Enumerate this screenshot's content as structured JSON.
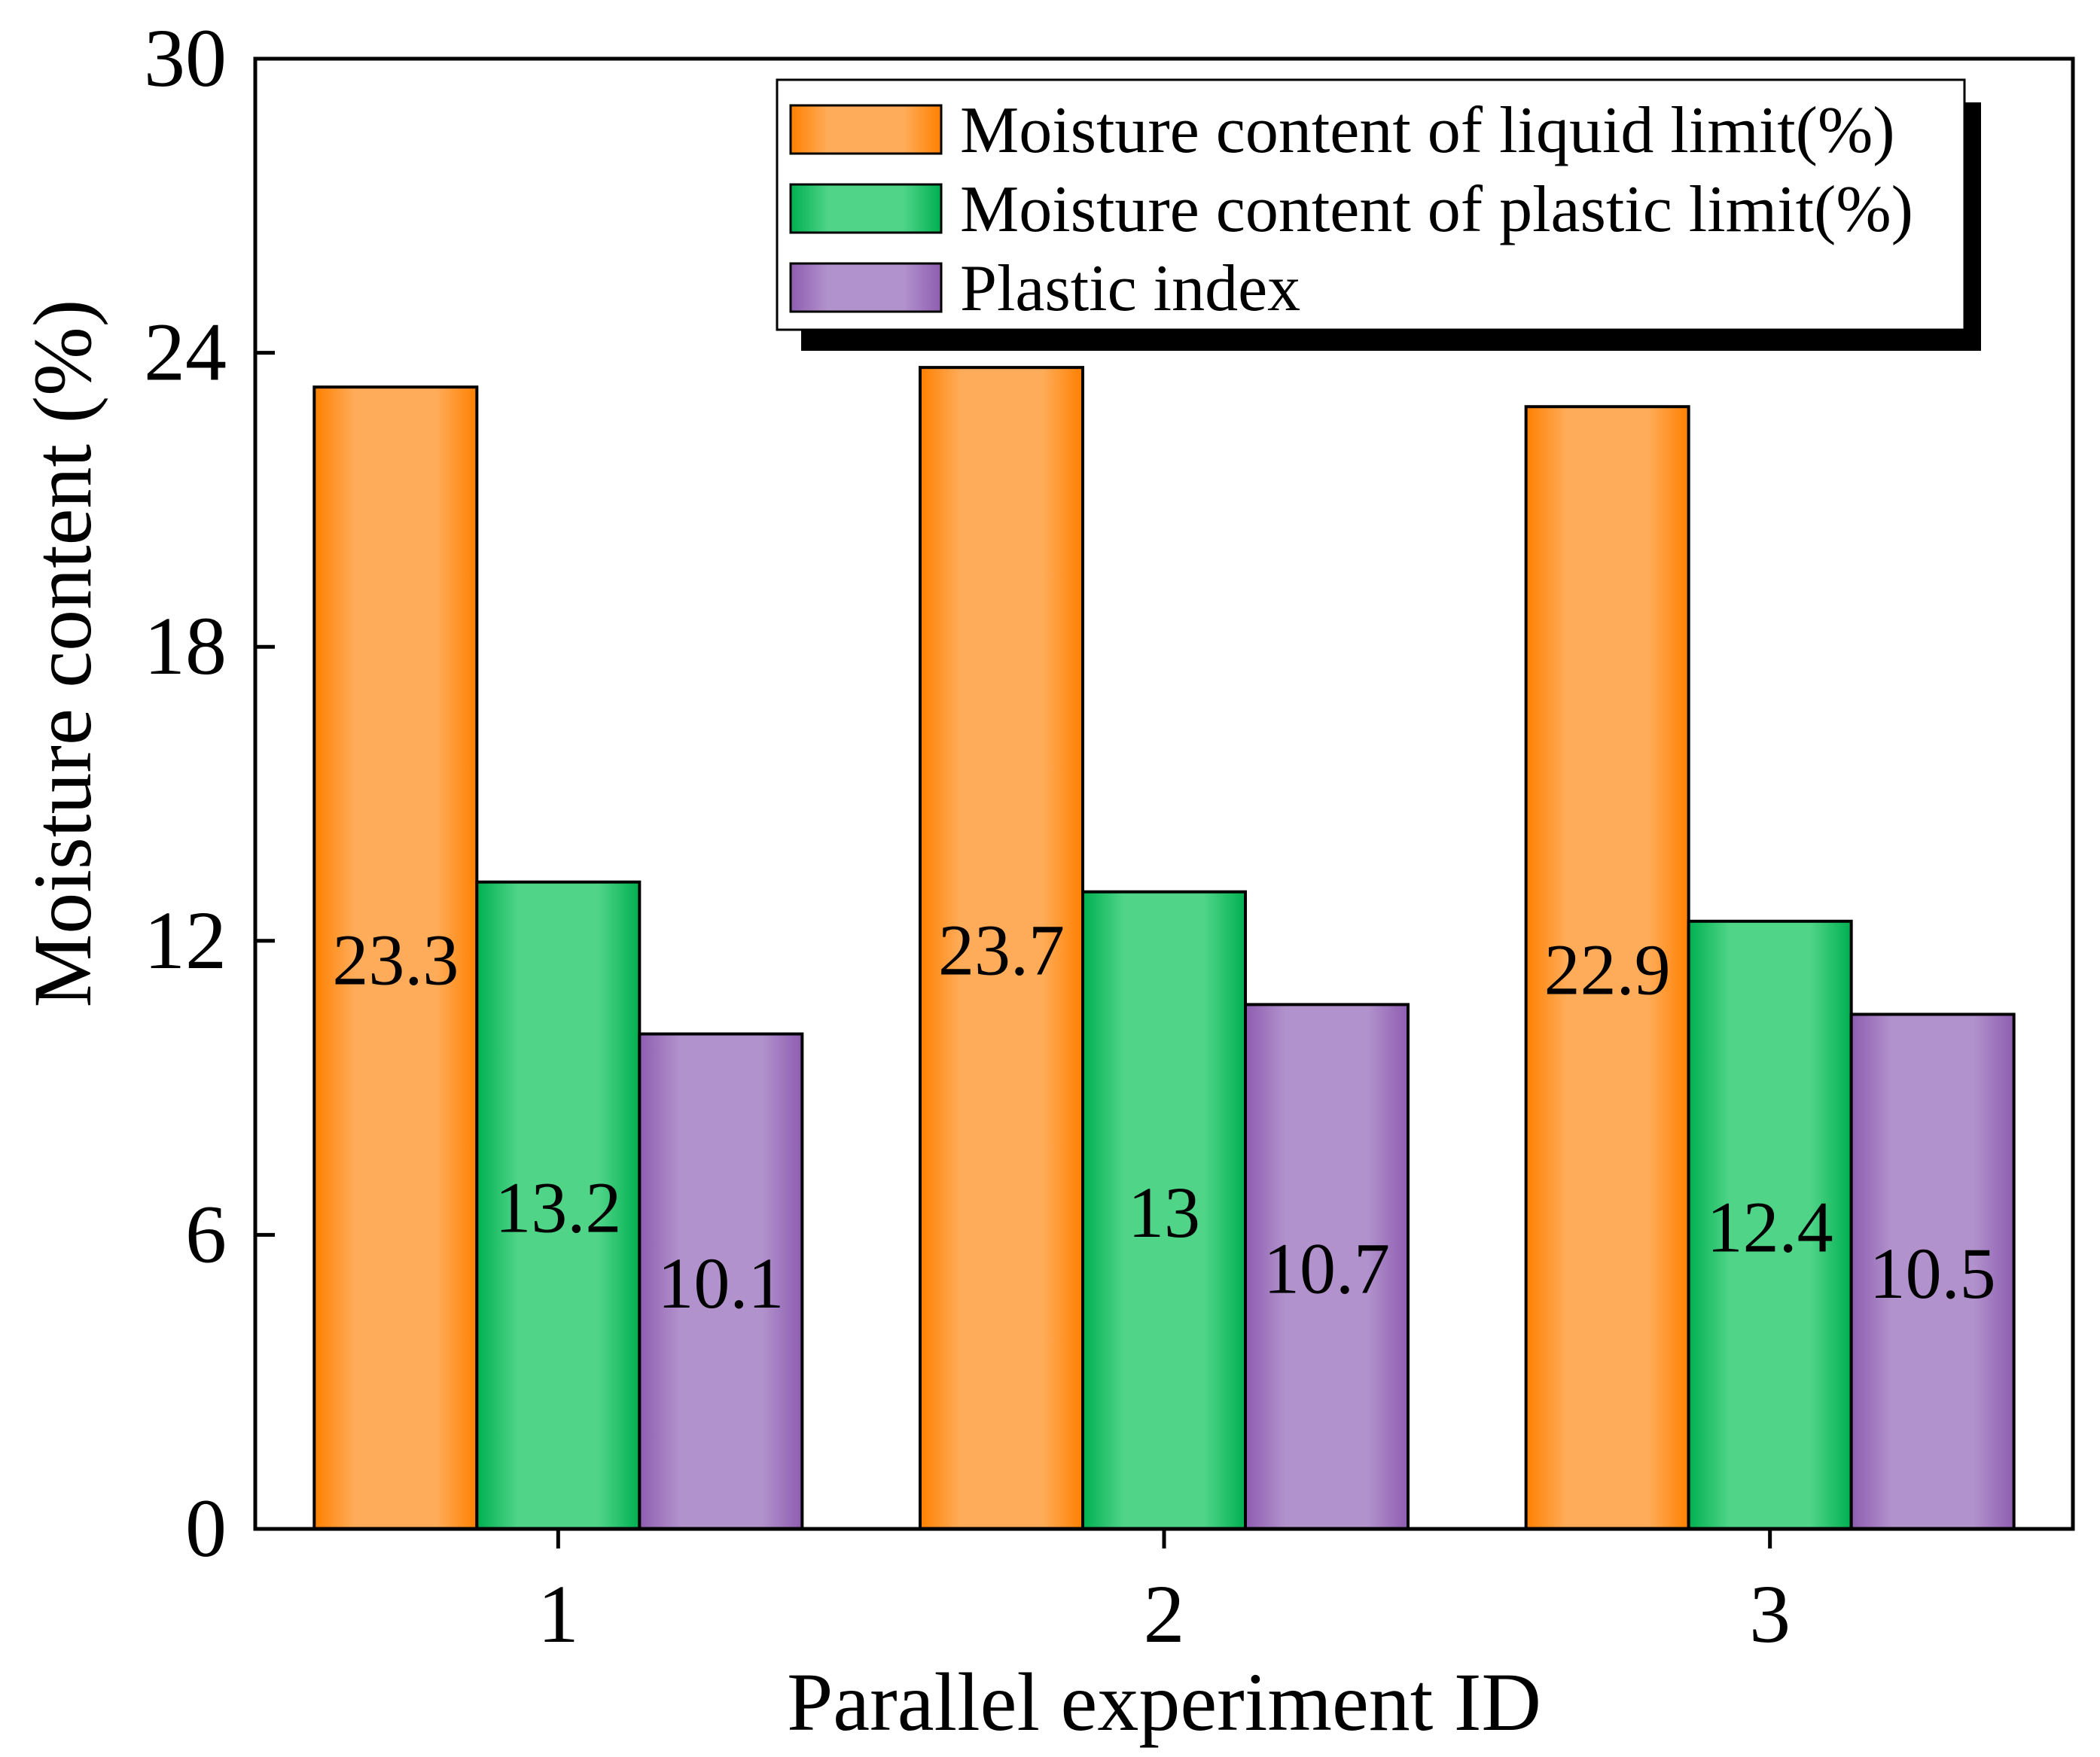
{
  "chart_data": {
    "type": "bar",
    "title": "",
    "xlabel": "Parallel experiment ID",
    "ylabel": "Moisture content (%)",
    "categories": [
      "1",
      "2",
      "3"
    ],
    "ylim": [
      0,
      30
    ],
    "yticks": [
      "0",
      "6",
      "12",
      "18",
      "24",
      "30"
    ],
    "legend_position": "top-right",
    "series": [
      {
        "name": "Moisture content of liquid limit(%)",
        "values": [
          23.3,
          23.7,
          22.9
        ],
        "labels": [
          "23.3",
          "23.7",
          "22.9"
        ],
        "color_dark": "#ff8000",
        "color_light": "#ffac5a"
      },
      {
        "name": "Moisture content of plastic limit(%)",
        "values": [
          13.2,
          13,
          12.4
        ],
        "labels": [
          "13.2",
          "13",
          "12.4"
        ],
        "color_dark": "#00b050",
        "color_light": "#4fd488"
      },
      {
        "name": "Plastic index",
        "values": [
          10.1,
          10.7,
          10.5
        ],
        "labels": [
          "10.1",
          "10.7",
          "10.5"
        ],
        "color_dark": "#8e5db1",
        "color_light": "#b292cc"
      }
    ]
  }
}
